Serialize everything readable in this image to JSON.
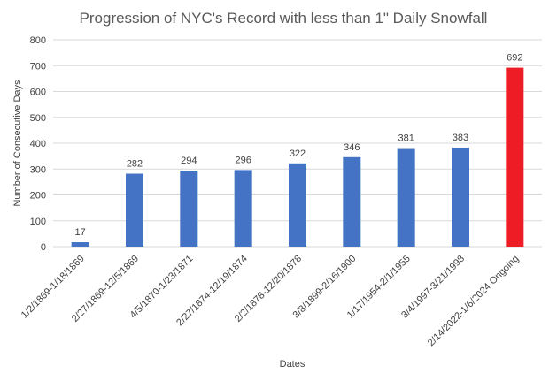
{
  "chart_data": {
    "type": "bar",
    "title": "Progression of NYC's Record with less than 1\" Daily Snowfall",
    "xlabel": "Dates",
    "ylabel": "Number of Consecutive Days",
    "ylim": [
      0,
      800
    ],
    "yticks": [
      0,
      100,
      200,
      300,
      400,
      500,
      600,
      700,
      800
    ],
    "grid": true,
    "legend": "none",
    "categories": [
      "1/2/1869-1/18/1869",
      "2/27/1869-12/5/1869",
      "4/5/1870-1/23/1871",
      "2/27/1874-12/19/1874",
      "2/2/1878-12/20/1878",
      "3/8/1899-2/16/1900",
      "1/17/1954-2/1/1955",
      "3/4/1997-3/21/1998",
      "2/14/2022-1/6/2024 Ongoing"
    ],
    "values": [
      17,
      282,
      294,
      296,
      322,
      346,
      381,
      383,
      692
    ],
    "data_labels": [
      "17",
      "282",
      "294",
      "296",
      "322",
      "346",
      "381",
      "383",
      "692"
    ],
    "colors": {
      "default": "#4472C4",
      "highlight": "#EE1C25",
      "highlight_index": 8
    }
  }
}
